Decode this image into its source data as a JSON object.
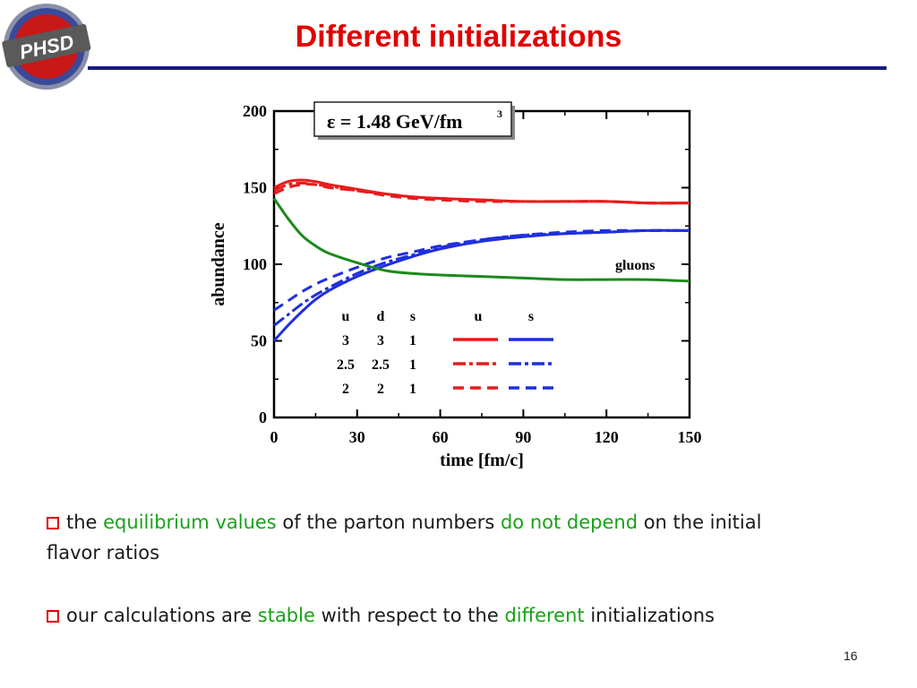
{
  "logo": {
    "text": "PHSD"
  },
  "slide": {
    "title": "Different initializations",
    "number": "16"
  },
  "chart_data": {
    "type": "line",
    "inset_label": "ε = 1.48 GeV/fm",
    "inset_superscript": "3",
    "xlabel": "time [fm/c]",
    "ylabel": "abundance",
    "xlim": [
      0,
      150
    ],
    "ylim": [
      0,
      200
    ],
    "x_ticks": [
      0,
      30,
      60,
      90,
      120,
      150
    ],
    "y_ticks": [
      0,
      50,
      100,
      150,
      200
    ],
    "annotation": "gluons",
    "legend": {
      "headers": [
        "u",
        "d",
        "s",
        "u",
        "s"
      ],
      "rows": [
        [
          "3",
          "3",
          "1"
        ],
        [
          "2.5",
          "2.5",
          "1"
        ],
        [
          "2",
          "2",
          "1"
        ]
      ]
    },
    "colors": {
      "u": "#e81c1c",
      "s": "#1f2fdc",
      "gluons": "#1a8a1a"
    },
    "x": [
      0,
      5,
      10,
      15,
      20,
      30,
      40,
      50,
      60,
      75,
      90,
      105,
      120,
      135,
      150
    ],
    "series": [
      {
        "flavor": "u",
        "style": "solid",
        "values": [
          150,
          154,
          155,
          154,
          152,
          149,
          146,
          144,
          143,
          142,
          141,
          141,
          141,
          140,
          140
        ]
      },
      {
        "flavor": "u",
        "style": "dashdot",
        "values": [
          148,
          152,
          153,
          152,
          151,
          148,
          146,
          144,
          143,
          142,
          141,
          141,
          141,
          140,
          140
        ]
      },
      {
        "flavor": "u",
        "style": "dashed",
        "values": [
          146,
          150,
          152,
          152,
          150,
          148,
          145,
          143,
          142,
          141,
          141,
          141,
          141,
          140,
          140
        ]
      },
      {
        "flavor": "s",
        "style": "solid",
        "values": [
          50,
          60,
          69,
          77,
          83,
          92,
          99,
          105,
          110,
          115,
          118,
          120,
          121,
          122,
          122
        ]
      },
      {
        "flavor": "s",
        "style": "dashdot",
        "values": [
          60,
          67,
          74,
          80,
          85,
          94,
          101,
          106,
          111,
          116,
          119,
          120,
          121,
          122,
          122
        ]
      },
      {
        "flavor": "s",
        "style": "dashed",
        "values": [
          70,
          76,
          82,
          87,
          91,
          98,
          104,
          108,
          112,
          116,
          119,
          121,
          122,
          122,
          122
        ]
      },
      {
        "flavor": "gluons",
        "style": "solid",
        "values": [
          143,
          130,
          119,
          112,
          107,
          101,
          96,
          94,
          93,
          92,
          91,
          90,
          90,
          90,
          89
        ]
      }
    ]
  },
  "bullets": [
    {
      "parts": [
        {
          "text": "the ",
          "green": false
        },
        {
          "text": "equilibrium values",
          "green": true
        },
        {
          "text": " of the parton numbers ",
          "green": false
        },
        {
          "text": "do not depend",
          "green": true
        },
        {
          "text": " on the initial flavor ratios",
          "green": false
        }
      ]
    },
    {
      "parts": [
        {
          "text": "our calculations are ",
          "green": false
        },
        {
          "text": "stable",
          "green": true
        },
        {
          "text": " with respect to the ",
          "green": false
        },
        {
          "text": "different",
          "green": true
        },
        {
          "text": " initializations",
          "green": false
        }
      ]
    }
  ]
}
